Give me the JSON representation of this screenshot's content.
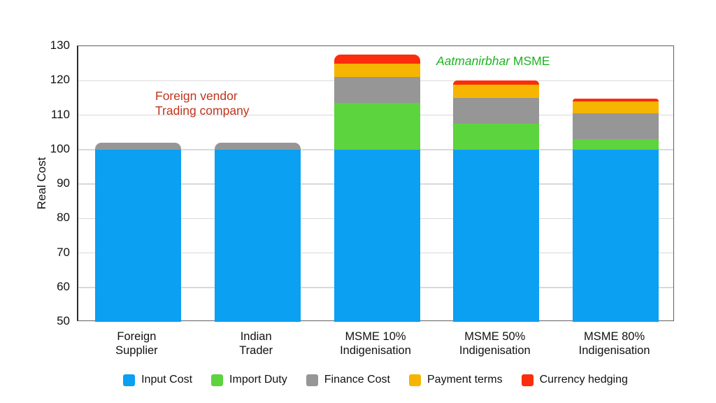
{
  "chart_data": {
    "type": "bar",
    "stacked": true,
    "title": "",
    "ylabel": "Real Cost",
    "ylim": [
      50,
      130
    ],
    "yticks": [
      50,
      60,
      70,
      80,
      90,
      100,
      110,
      120,
      130
    ],
    "grid": true,
    "legend_position": "bottom",
    "categories": [
      "Foreign\nSupplier",
      "Indian\nTrader",
      "MSME 10%\nIndigenisation",
      "MSME 50%\nIndigenisation",
      "MSME 80%\nIndigenisation"
    ],
    "series": [
      {
        "name": "Input Cost",
        "color": "#0BA0F2",
        "values": [
          100,
          100,
          100,
          100,
          100
        ]
      },
      {
        "name": "Import Duty",
        "color": "#5CD43D",
        "values": [
          0,
          0,
          13.5,
          7.5,
          3
        ]
      },
      {
        "name": "Finance Cost",
        "color": "#969696",
        "values": [
          2,
          2,
          7.5,
          7.5,
          7.5
        ]
      },
      {
        "name": "Payment terms",
        "color": "#F6B500",
        "values": [
          0,
          0,
          4,
          3.75,
          3.5
        ]
      },
      {
        "name": "Currency hedging",
        "color": "#FB2D0C",
        "values": [
          0,
          0,
          2.5,
          1.25,
          0.75
        ]
      }
    ],
    "totals": [
      102,
      102,
      127.5,
      120,
      114.75
    ],
    "annotations": [
      {
        "id": "foreign-vendor",
        "lines": [
          "Foreign vendor",
          "Trading company"
        ],
        "color": "#C0341D"
      },
      {
        "id": "aatmanirbhar-msme",
        "italic": "Aatmanirbhar",
        "regular": " MSME",
        "color": "#1DB320"
      }
    ],
    "axis_colors": {
      "frame": "#606060",
      "gridline": "#d9d9d9"
    }
  }
}
